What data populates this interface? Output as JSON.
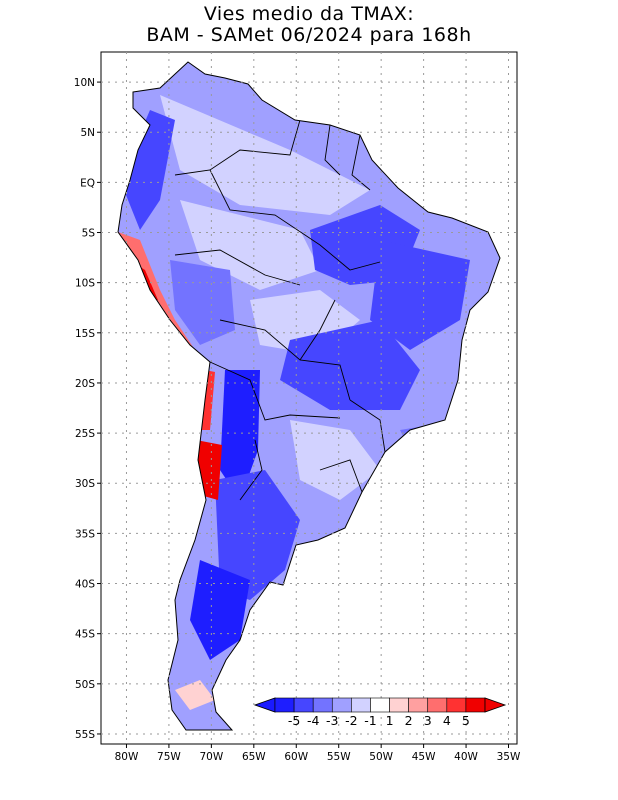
{
  "title": {
    "line1": "Vies medio da TMAX:",
    "line2": "BAM - SAMet 06/2024  para 168h"
  },
  "axes": {
    "lat_labels": [
      "10N",
      "5N",
      "EQ",
      "5S",
      "10S",
      "15S",
      "20S",
      "25S",
      "30S",
      "35S",
      "40S",
      "45S",
      "50S",
      "55S"
    ],
    "lat_values": [
      10,
      5,
      0,
      -5,
      -10,
      -15,
      -20,
      -25,
      -30,
      -35,
      -40,
      -45,
      -50,
      -55
    ],
    "lon_labels": [
      "80W",
      "75W",
      "70W",
      "65W",
      "60W",
      "55W",
      "50W",
      "45W",
      "40W",
      "35W"
    ],
    "lon_values": [
      -80,
      -75,
      -70,
      -65,
      -60,
      -55,
      -50,
      -45,
      -40,
      -35
    ],
    "lat_range": [
      -56,
      13
    ],
    "lon_range": [
      -83,
      -34
    ]
  },
  "colorbar": {
    "labels": [
      "-5",
      "-4",
      "-3",
      "-2",
      "-1",
      "1",
      "2",
      "3",
      "4",
      "5"
    ],
    "colors": [
      "#1e1eff",
      "#4646ff",
      "#7373ff",
      "#a0a0ff",
      "#d2d2ff",
      "#ffffff",
      "#ffd2d2",
      "#ffa0a0",
      "#ff6e6e",
      "#ff3232",
      "#f00000"
    ],
    "underflow_color": "#1a1aff",
    "overflow_color": "#f00000"
  },
  "map_colors": {
    "land_neutral": "#ffffff",
    "grid": "#9a9a9a",
    "border": "#000000"
  }
}
